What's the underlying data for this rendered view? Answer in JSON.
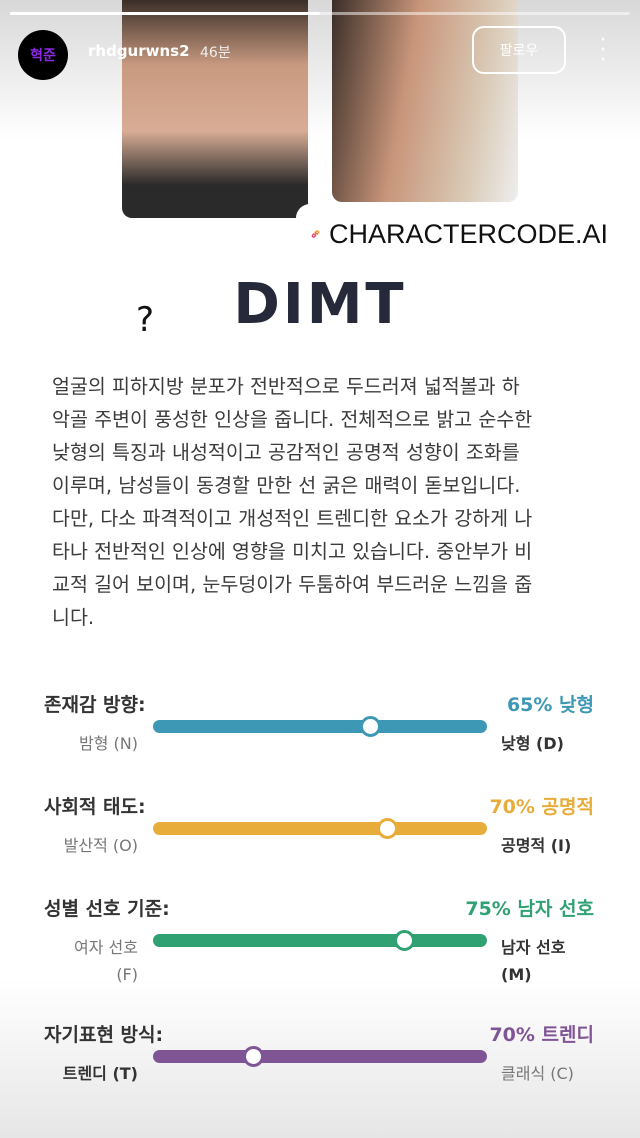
{
  "story": {
    "progress": 0.5,
    "avatar_text": "혁준",
    "username": "rhdgurwns2",
    "time": "46분",
    "follow_label": "팔로우"
  },
  "link_sticker": {
    "text": "CHARACTERCODE.AI"
  },
  "question_mark": "?",
  "title": "DIMT",
  "description": [
    "얼굴의 피하지방 분포가 전반적으로 두드러져 넓적볼과 하",
    "악골 주변이 풍성한 인상을 줍니다. 전체적으로 밝고 순수한",
    "낮형의 특징과 내성적이고 공감적인 공명적 성향이 조화를",
    "이루며, 남성들이 동경할 만한 선 굵은 매력이 돋보입니다.",
    "다만, 다소 파격적이고 개성적인 트렌디한 요소가 강하게 나",
    "타나 전반적인 인상에 영향을 미치고 있습니다. 중안부가 비",
    "교적 길어 보이며, 눈두덩이가 두툼하여 부드러운 느낌을 줍",
    "니다."
  ],
  "metrics": [
    {
      "label": "존재감 방향:",
      "value": "65% 낮형",
      "left": "밤형 (N)",
      "right": "낮형 (D)",
      "position": 65,
      "color": "#3d98b5"
    },
    {
      "label": "사회적 태도:",
      "value": "70% 공명적",
      "left": "발산적 (O)",
      "right": "공명적 (I)",
      "position": 70,
      "color": "#e8ac3a"
    },
    {
      "label": "성별 선호 기준:",
      "value": "75% 남자 선호",
      "left": "여자 선호 (F)",
      "right": "남자 선호 (M)",
      "position": 75,
      "color": "#2fa172"
    },
    {
      "label": "자기표현 방식:",
      "value": "70% 트렌디",
      "left": "트렌디 (T)",
      "right": "클래식 (C)",
      "position": 30,
      "color": "#7f5595"
    }
  ]
}
